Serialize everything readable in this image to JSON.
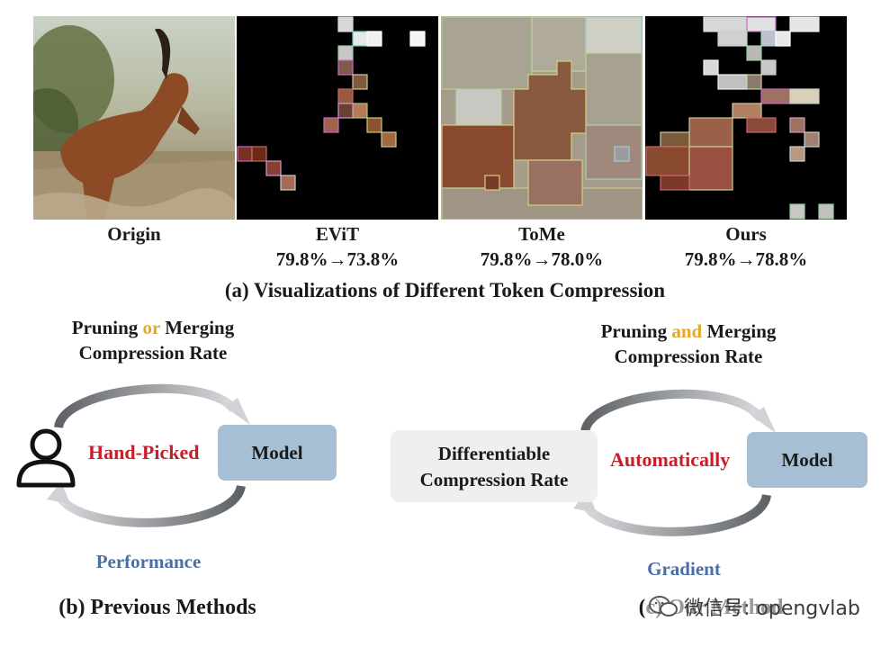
{
  "panels": [
    {
      "name": "Origin",
      "stat": ""
    },
    {
      "name": "EViT",
      "stat": "79.8%→73.8%"
    },
    {
      "name": "ToMe",
      "stat": "79.8%→78.0%"
    },
    {
      "name": "Ours",
      "stat": "79.8%→78.8%"
    }
  ],
  "caption_a": "(a) Visualizations of  Different Token Compression",
  "prev": {
    "title_line1_pre": "Pruning ",
    "title_line1_acc": "or",
    "title_line1_post": " Merging",
    "title_line2": "Compression Rate",
    "center": "Hand-Picked",
    "model": "Model",
    "bottom": "Performance",
    "caption": "(b) Previous Methods",
    "icon": "user-icon"
  },
  "ours": {
    "title_line1_pre": "Pruning ",
    "title_line1_acc": "and",
    "title_line1_post": " Merging",
    "title_line2": "Compression Rate",
    "box_line1": "Differentiable",
    "box_line2": "Compression Rate",
    "center": "Automatically",
    "model": "Model",
    "bottom": "Gradient",
    "caption": "(c) Our Method"
  },
  "watermark": "微信号: opengvlab",
  "colors": {
    "accent": "#e7a825",
    "red": "#c41f2a",
    "blue": "#4a6fa5",
    "model_box": "#a7bfd4"
  }
}
